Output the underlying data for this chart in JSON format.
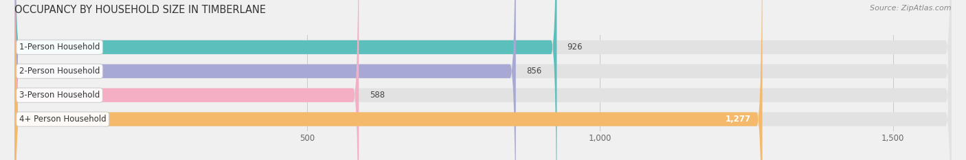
{
  "title": "OCCUPANCY BY HOUSEHOLD SIZE IN TIMBERLANE",
  "source": "Source: ZipAtlas.com",
  "categories": [
    "1-Person Household",
    "2-Person Household",
    "3-Person Household",
    "4+ Person Household"
  ],
  "values": [
    926,
    856,
    588,
    1277
  ],
  "bar_colors": [
    "#5bbfbc",
    "#a8a8d4",
    "#f5afc5",
    "#f5b96b"
  ],
  "xlim_max": 1600,
  "xticks": [
    500,
    1000,
    1500
  ],
  "xtick_labels": [
    "500",
    "1,000",
    "1,500"
  ],
  "bar_height": 0.58,
  "background_color": "#f0f0f0",
  "bar_bg_color": "#e2e2e2",
  "title_fontsize": 10.5,
  "source_fontsize": 8,
  "label_fontsize": 8.5,
  "value_fontsize": 8.5
}
